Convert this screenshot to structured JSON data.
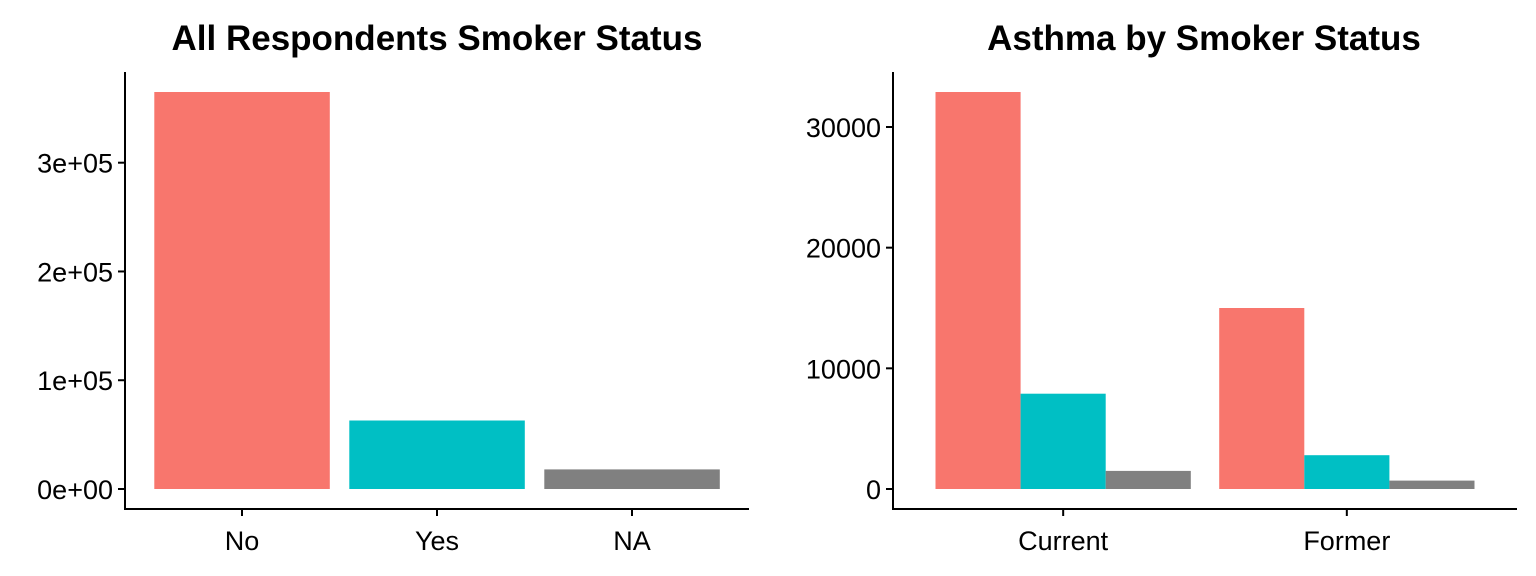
{
  "chart_data": [
    {
      "type": "bar",
      "title": "All Respondents Smoker Status",
      "xlabel": "",
      "ylabel": "",
      "categories": [
        "No",
        "Yes",
        "NA"
      ],
      "values": [
        365000,
        63000,
        18000
      ],
      "colors": [
        "#F8766D",
        "#00BFC4",
        "#808080"
      ],
      "ylim": [
        0,
        365000
      ],
      "yticks": [
        0,
        100000,
        200000,
        300000
      ],
      "ytick_labels": [
        "0e+00",
        "1e+05",
        "2e+05",
        "3e+05"
      ],
      "grid": false,
      "legend": "none"
    },
    {
      "type": "bar",
      "title": "Asthma by Smoker Status",
      "xlabel": "",
      "ylabel": "",
      "categories": [
        "Current",
        "Former"
      ],
      "series": [
        {
          "values": [
            32900,
            15000
          ],
          "color": "#F8766D"
        },
        {
          "values": [
            7900,
            2800
          ],
          "color": "#00BFC4"
        },
        {
          "values": [
            1500,
            700
          ],
          "color": "#808080"
        }
      ],
      "ylim": [
        0,
        32900
      ],
      "yticks": [
        0,
        10000,
        20000,
        30000
      ],
      "ytick_labels": [
        "0",
        "10000",
        "20000",
        "30000"
      ],
      "grid": false,
      "legend": "none"
    }
  ]
}
